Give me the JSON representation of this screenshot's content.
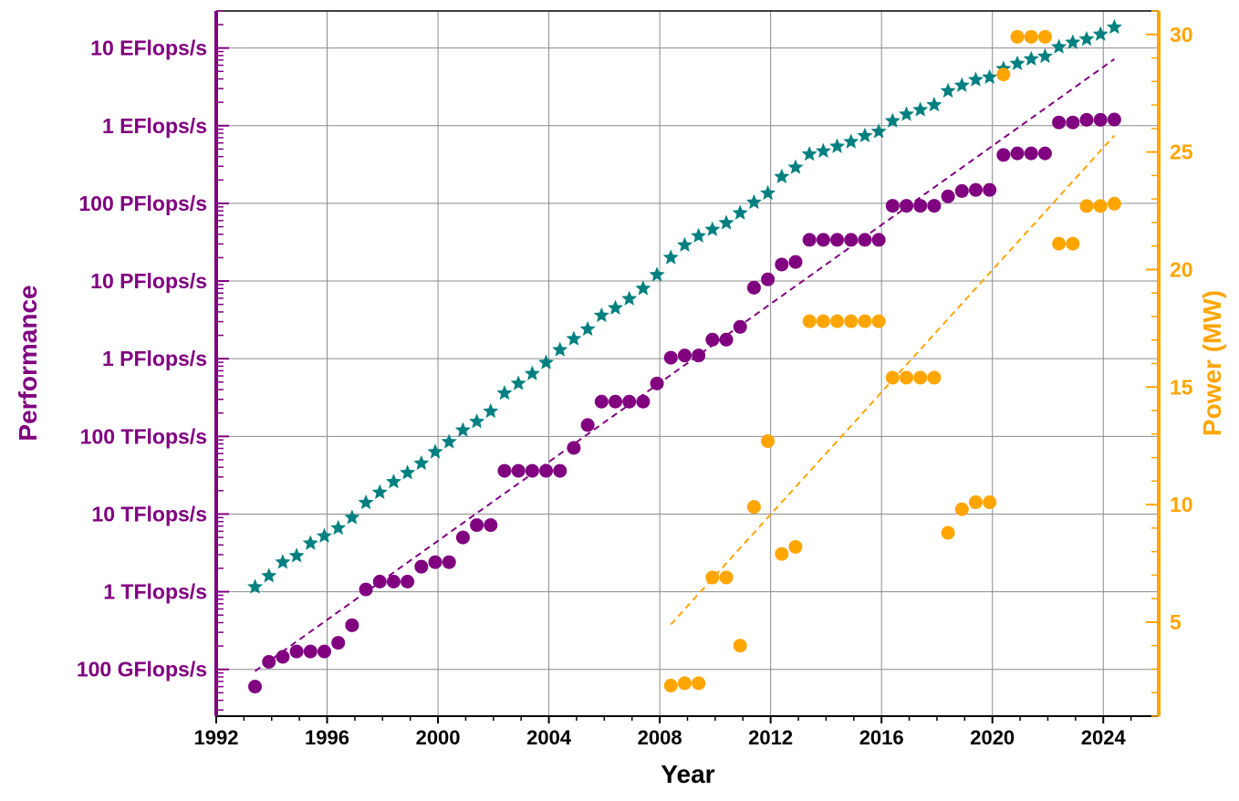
{
  "chart_data": {
    "type": "scatter",
    "xlabel": "Year",
    "ylabel_left": "Performance",
    "ylabel_right": "Power (MW)",
    "xlim": [
      1992,
      2026
    ],
    "ylim_left_flops": [
      25000000000.0,
      3e+19
    ],
    "ylim_right_mw": [
      1,
      31
    ],
    "left_scale": "log",
    "grid": true,
    "x_ticks": [
      1992,
      1996,
      2000,
      2004,
      2008,
      2012,
      2016,
      2020,
      2024
    ],
    "y_left_ticks": [
      {
        "label": "100 GFlops/s",
        "value": 100000000000.0
      },
      {
        "label": "1 TFlops/s",
        "value": 1000000000000.0
      },
      {
        "label": "10 TFlops/s",
        "value": 10000000000000.0
      },
      {
        "label": "100 TFlops/s",
        "value": 100000000000000.0
      },
      {
        "label": "1 PFlops/s",
        "value": 1000000000000000.0
      },
      {
        "label": "10 PFlops/s",
        "value": 1e+16
      },
      {
        "label": "100 PFlops/s",
        "value": 1e+17
      },
      {
        "label": "1 EFlops/s",
        "value": 1e+18
      },
      {
        "label": "10 EFlops/s",
        "value": 1e+19
      }
    ],
    "y_right_ticks": [
      5,
      10,
      15,
      20,
      25,
      30
    ],
    "colors": {
      "performance": "#800080",
      "sum": "#008080",
      "power": "#FFA500",
      "grid": "#8c8c8c"
    },
    "series": [
      {
        "marker": "star",
        "color": "#008080",
        "axis": "left",
        "points": [
          [
            1993.4,
            1150000000000.0
          ],
          [
            1993.9,
            1600000000000.0
          ],
          [
            1994.4,
            2400000000000.0
          ],
          [
            1994.9,
            2900000000000.0
          ],
          [
            1995.4,
            4200000000000.0
          ],
          [
            1995.9,
            5200000000000.0
          ],
          [
            1996.4,
            6600000000000.0
          ],
          [
            1996.9,
            9000000000000.0
          ],
          [
            1997.4,
            14000000000000.0
          ],
          [
            1997.9,
            19000000000000.0
          ],
          [
            1998.4,
            26000000000000.0
          ],
          [
            1998.9,
            34000000000000.0
          ],
          [
            1999.4,
            45000000000000.0
          ],
          [
            1999.9,
            63000000000000.0
          ],
          [
            2000.4,
            85000000000000.0
          ],
          [
            2000.9,
            120000000000000.0
          ],
          [
            2001.4,
            155000000000000.0
          ],
          [
            2001.9,
            210000000000000.0
          ],
          [
            2002.4,
            360000000000000.0
          ],
          [
            2002.9,
            480000000000000.0
          ],
          [
            2003.4,
            640000000000000.0
          ],
          [
            2003.9,
            890000000000000.0
          ],
          [
            2004.4,
            1300000000000000.0
          ],
          [
            2004.9,
            1800000000000000.0
          ],
          [
            2005.4,
            2400000000000000.0
          ],
          [
            2005.9,
            3600000000000000.0
          ],
          [
            2006.4,
            4500000000000000.0
          ],
          [
            2006.9,
            5900000000000000.0
          ],
          [
            2007.4,
            8000000000000000.0
          ],
          [
            2007.9,
            1.2e+16
          ],
          [
            2008.4,
            2e+16
          ],
          [
            2008.9,
            2.9e+16
          ],
          [
            2009.4,
            3.8e+16
          ],
          [
            2009.9,
            4.6e+16
          ],
          [
            2010.4,
            5.6e+16
          ],
          [
            2010.9,
            7.5e+16
          ],
          [
            2011.4,
            1.03e+17
          ],
          [
            2011.9,
            1.35e+17
          ],
          [
            2012.4,
            2.2e+17
          ],
          [
            2012.9,
            2.9e+17
          ],
          [
            2013.4,
            4.3e+17
          ],
          [
            2013.9,
            4.7e+17
          ],
          [
            2014.4,
            5.4e+17
          ],
          [
            2014.9,
            6.2e+17
          ],
          [
            2015.4,
            7.4e+17
          ],
          [
            2015.9,
            8.4e+17
          ],
          [
            2016.4,
            1.15e+18
          ],
          [
            2016.9,
            1.4e+18
          ],
          [
            2017.4,
            1.6e+18
          ],
          [
            2017.9,
            1.85e+18
          ],
          [
            2018.4,
            2.8e+18
          ],
          [
            2018.9,
            3.3e+18
          ],
          [
            2019.4,
            3.9e+18
          ],
          [
            2019.9,
            4.2e+18
          ],
          [
            2020.4,
            5.4e+18
          ],
          [
            2020.9,
            6.3e+18
          ],
          [
            2021.4,
            7.2e+18
          ],
          [
            2021.9,
            7.8e+18
          ],
          [
            2022.4,
            1.03e+19
          ],
          [
            2022.9,
            1.18e+19
          ],
          [
            2023.4,
            1.3e+19
          ],
          [
            2023.9,
            1.5e+19
          ],
          [
            2024.4,
            1.85e+19
          ]
        ]
      },
      {
        "marker": "circle",
        "color": "#800080",
        "axis": "left",
        "points": [
          [
            1993.4,
            60000000000.0
          ],
          [
            1993.9,
            125000000000.0
          ],
          [
            1994.4,
            145000000000.0
          ],
          [
            1994.9,
            170000000000.0
          ],
          [
            1995.4,
            170000000000.0
          ],
          [
            1995.9,
            170000000000.0
          ],
          [
            1996.4,
            220000000000.0
          ],
          [
            1996.9,
            370000000000.0
          ],
          [
            1997.4,
            1070000000000.0
          ],
          [
            1997.9,
            1350000000000.0
          ],
          [
            1998.4,
            1350000000000.0
          ],
          [
            1998.9,
            1350000000000.0
          ],
          [
            1999.4,
            2100000000000.0
          ],
          [
            1999.9,
            2400000000000.0
          ],
          [
            2000.4,
            2400000000000.0
          ],
          [
            2000.9,
            5000000000000.0
          ],
          [
            2001.4,
            7200000000000.0
          ],
          [
            2001.9,
            7200000000000.0
          ],
          [
            2002.4,
            36000000000000.0
          ],
          [
            2002.9,
            36000000000000.0
          ],
          [
            2003.4,
            36000000000000.0
          ],
          [
            2003.9,
            36000000000000.0
          ],
          [
            2004.4,
            36000000000000.0
          ],
          [
            2004.9,
            71000000000000.0
          ],
          [
            2005.4,
            140000000000000.0
          ],
          [
            2005.9,
            280000000000000.0
          ],
          [
            2006.4,
            280000000000000.0
          ],
          [
            2006.9,
            280000000000000.0
          ],
          [
            2007.4,
            280000000000000.0
          ],
          [
            2007.9,
            480000000000000.0
          ],
          [
            2008.4,
            1030000000000000.0
          ],
          [
            2008.9,
            1100000000000000.0
          ],
          [
            2009.4,
            1100000000000000.0
          ],
          [
            2009.9,
            1760000000000000.0
          ],
          [
            2010.4,
            1760000000000000.0
          ],
          [
            2010.9,
            2570000000000000.0
          ],
          [
            2011.4,
            8200000000000000.0
          ],
          [
            2011.9,
            1.05e+16
          ],
          [
            2012.4,
            1.63e+16
          ],
          [
            2012.9,
            1.76e+16
          ],
          [
            2013.4,
            3.39e+16
          ],
          [
            2013.9,
            3.39e+16
          ],
          [
            2014.4,
            3.39e+16
          ],
          [
            2014.9,
            3.39e+16
          ],
          [
            2015.4,
            3.39e+16
          ],
          [
            2015.9,
            3.39e+16
          ],
          [
            2016.4,
            9.3e+16
          ],
          [
            2016.9,
            9.3e+16
          ],
          [
            2017.4,
            9.3e+16
          ],
          [
            2017.9,
            9.3e+16
          ],
          [
            2018.4,
            1.23e+17
          ],
          [
            2018.9,
            1.44e+17
          ],
          [
            2019.4,
            1.49e+17
          ],
          [
            2019.9,
            1.49e+17
          ],
          [
            2020.4,
            4.2e+17
          ],
          [
            2020.9,
            4.4e+17
          ],
          [
            2021.4,
            4.4e+17
          ],
          [
            2021.9,
            4.4e+17
          ],
          [
            2022.4,
            1.1e+18
          ],
          [
            2022.9,
            1.1e+18
          ],
          [
            2023.4,
            1.19e+18
          ],
          [
            2023.9,
            1.19e+18
          ],
          [
            2024.4,
            1.2e+18
          ]
        ]
      },
      {
        "marker": "dashed-line",
        "color": "#800080",
        "axis": "left",
        "points": [
          [
            1993.4,
            95000000000.0
          ],
          [
            2024.4,
            7.2e+18
          ]
        ]
      },
      {
        "marker": "circle",
        "color": "#FFA500",
        "axis": "right",
        "points": [
          [
            2008.4,
            2.3
          ],
          [
            2008.9,
            2.4
          ],
          [
            2009.4,
            2.4
          ],
          [
            2009.9,
            6.9
          ],
          [
            2010.4,
            6.9
          ],
          [
            2010.9,
            4.0
          ],
          [
            2011.4,
            9.9
          ],
          [
            2011.9,
            12.7
          ],
          [
            2012.4,
            7.9
          ],
          [
            2012.9,
            8.2
          ],
          [
            2013.4,
            17.8
          ],
          [
            2013.9,
            17.8
          ],
          [
            2014.4,
            17.8
          ],
          [
            2014.9,
            17.8
          ],
          [
            2015.4,
            17.8
          ],
          [
            2015.9,
            17.8
          ],
          [
            2016.4,
            15.4
          ],
          [
            2016.9,
            15.4
          ],
          [
            2017.4,
            15.4
          ],
          [
            2017.9,
            15.4
          ],
          [
            2018.4,
            8.8
          ],
          [
            2018.9,
            9.8
          ],
          [
            2019.4,
            10.1
          ],
          [
            2019.9,
            10.1
          ],
          [
            2020.4,
            28.3
          ],
          [
            2020.9,
            29.9
          ],
          [
            2021.4,
            29.9
          ],
          [
            2021.9,
            29.9
          ],
          [
            2022.4,
            21.1
          ],
          [
            2022.9,
            21.1
          ],
          [
            2023.4,
            22.7
          ],
          [
            2023.9,
            22.7
          ],
          [
            2024.4,
            22.8
          ]
        ]
      },
      {
        "marker": "dashed-line",
        "color": "#FFA500",
        "axis": "right",
        "points": [
          [
            2008.4,
            4.9
          ],
          [
            2024.4,
            25.7
          ]
        ]
      }
    ]
  }
}
